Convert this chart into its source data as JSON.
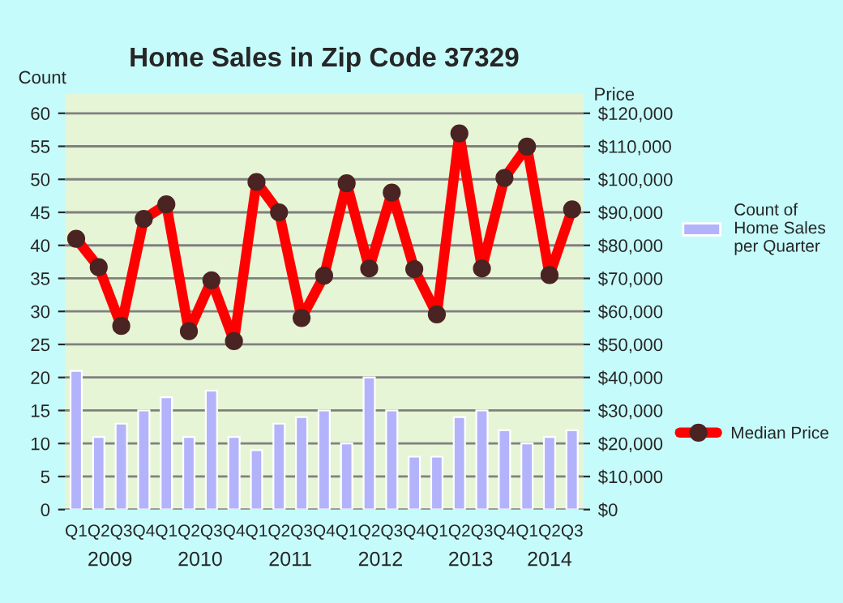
{
  "chart_data": {
    "type": "bar",
    "title": "Home Sales in Zip Code 37329",
    "categories": [
      "Q1",
      "Q2",
      "Q3",
      "Q4",
      "Q1",
      "Q2",
      "Q3",
      "Q4",
      "Q1",
      "Q2",
      "Q3",
      "Q4",
      "Q1",
      "Q2",
      "Q3",
      "Q4",
      "Q1",
      "Q2",
      "Q3",
      "Q4",
      "Q1",
      "Q2",
      "Q3"
    ],
    "series": [
      {
        "name": "Count of\nHome Sales\nper Quarter",
        "color": "#b3b3fb",
        "values": [
          21,
          11,
          13,
          15,
          17,
          11,
          18,
          11,
          9,
          13,
          14,
          15,
          10,
          20,
          15,
          8,
          8,
          14,
          15,
          12,
          10,
          11,
          12
        ]
      },
      {
        "name": "Median Price",
        "type": "line",
        "axis": "y2",
        "color": "#ff0000",
        "marker": "circle",
        "values": [
          82000,
          73400,
          55600,
          88000,
          92400,
          54000,
          69400,
          51000,
          99200,
          90000,
          58000,
          70800,
          98800,
          73000,
          96000,
          72800,
          59100,
          113900,
          73000,
          100400,
          109900,
          71000,
          90900
        ]
      }
    ],
    "ylabel": "Count",
    "y2label": "Price",
    "ylim": [
      0,
      63
    ],
    "yticks": [
      0,
      5,
      10,
      15,
      20,
      25,
      30,
      35,
      40,
      45,
      50,
      55,
      60
    ],
    "y2lim": [
      0,
      126000
    ],
    "y2ticks": [
      {
        "value": 0,
        "label": "$0"
      },
      {
        "value": 10000,
        "label": "$10,000"
      },
      {
        "value": 20000,
        "label": "$20,000"
      },
      {
        "value": 30000,
        "label": "$30,000"
      },
      {
        "value": 40000,
        "label": "$40,000"
      },
      {
        "value": 50000,
        "label": "$50,000"
      },
      {
        "value": 60000,
        "label": "$60,000"
      },
      {
        "value": 70000,
        "label": "$70,000"
      },
      {
        "value": 80000,
        "label": "$80,000"
      },
      {
        "value": 90000,
        "label": "$90,000"
      },
      {
        "value": 100000,
        "label": "$100,000"
      },
      {
        "value": 110000,
        "label": "$110,000"
      },
      {
        "value": 120000,
        "label": "$120,000"
      }
    ],
    "annotations": [
      "2009",
      "2010",
      "2011",
      "2012",
      "2013",
      "2014"
    ],
    "grid": "y",
    "legend": "right"
  }
}
